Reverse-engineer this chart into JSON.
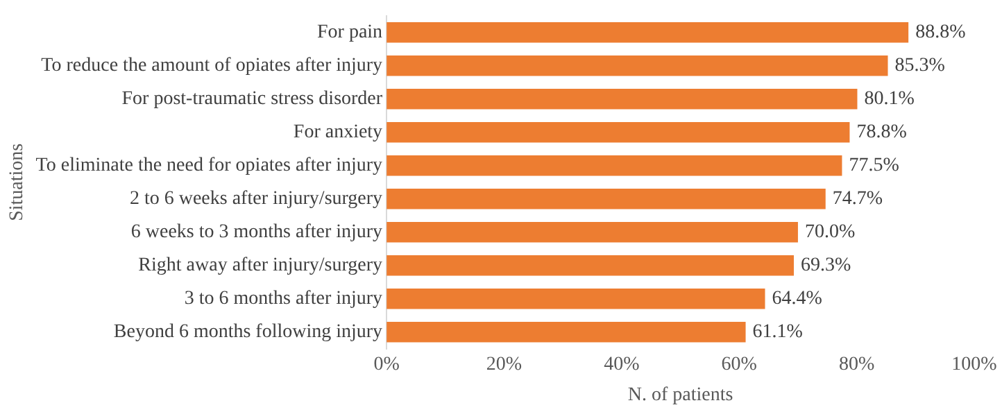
{
  "chart_data": {
    "type": "bar",
    "orientation": "horizontal",
    "ylabel": "Situations",
    "xlabel": "N. of patients",
    "categories": [
      "For pain",
      "To reduce the amount of opiates after injury",
      "For post-traumatic stress disorder",
      "For anxiety",
      "To eliminate the need for opiates after injury",
      "2 to 6 weeks after injury/surgery",
      "6 weeks to 3 months after injury",
      "Right away after injury/surgery",
      "3 to 6 months after injury",
      "Beyond 6 months following injury"
    ],
    "values": [
      88.8,
      85.3,
      80.1,
      78.8,
      77.5,
      74.7,
      70.0,
      69.3,
      64.4,
      61.1
    ],
    "value_labels": [
      "88.8%",
      "85.3%",
      "80.1%",
      "78.8%",
      "77.5%",
      "74.7%",
      "70.0%",
      "69.3%",
      "64.4%",
      "61.1%"
    ],
    "color": "#ed7d31",
    "xlim": [
      0,
      100
    ],
    "xticks": [
      {
        "value": 0,
        "label": "0%"
      },
      {
        "value": 20,
        "label": "20%"
      },
      {
        "value": 40,
        "label": "40%"
      },
      {
        "value": 60,
        "label": "60%"
      },
      {
        "value": 80,
        "label": "80%"
      },
      {
        "value": 100,
        "label": "100%"
      }
    ],
    "grid": false,
    "legend": false
  }
}
